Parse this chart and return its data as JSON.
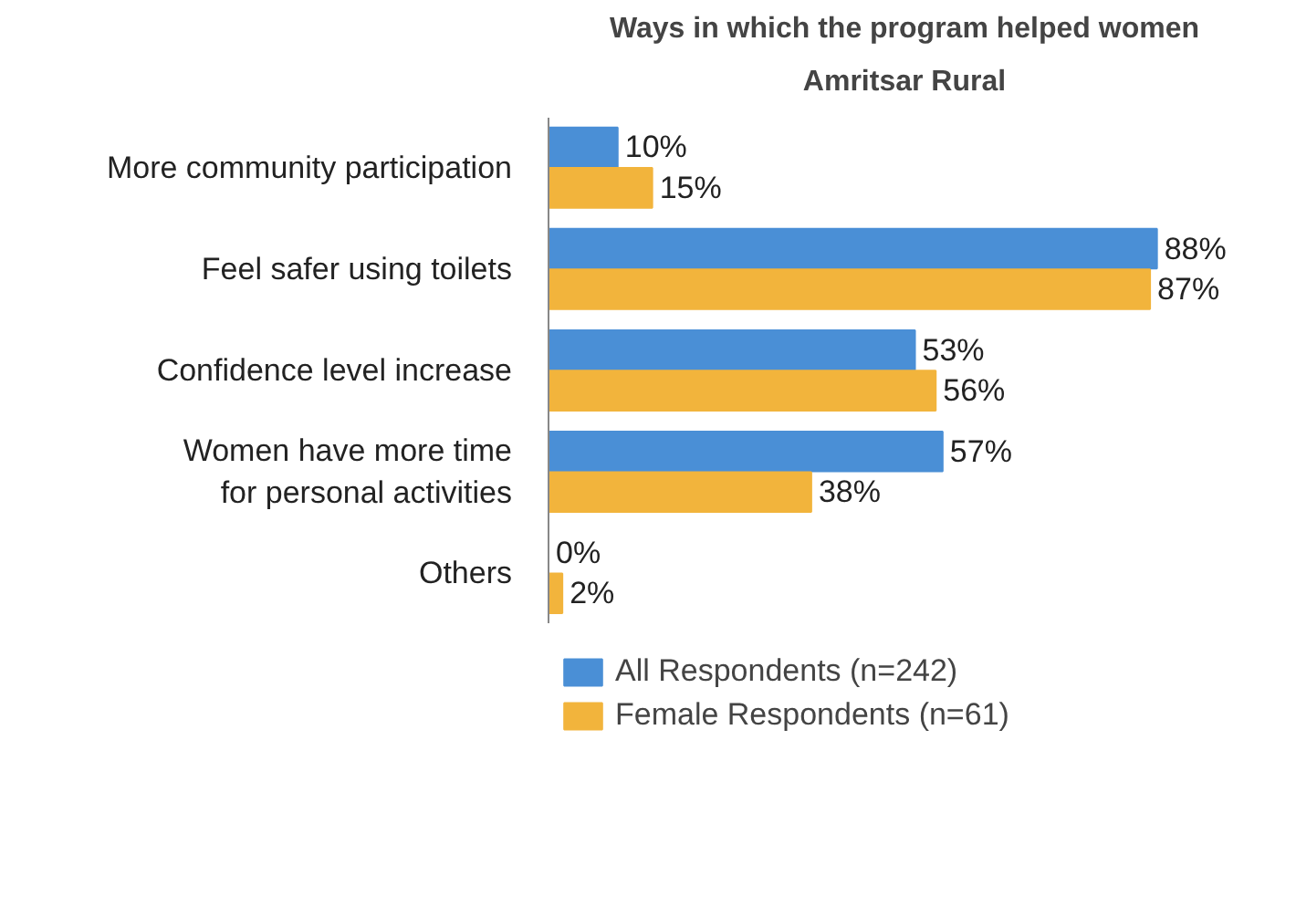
{
  "chart_data": {
    "type": "bar",
    "orientation": "horizontal",
    "title": "Ways in which the program helped women",
    "subtitle": "Amritsar Rural",
    "categories": [
      "More community participation",
      "Feel safer using toilets",
      "Confidence level increase",
      "Women have more time\nfor personal activities",
      "Others"
    ],
    "series": [
      {
        "name": "All Respondents (n=242)",
        "color": "#4a8fd6",
        "values": [
          10,
          88,
          53,
          57,
          0
        ],
        "value_labels": [
          "10%",
          "88%",
          "53%",
          "57%",
          "0%"
        ]
      },
      {
        "name": "Female Respondents (n=61)",
        "color": "#f2b43c",
        "values": [
          15,
          87,
          56,
          38,
          2
        ],
        "value_labels": [
          "15%",
          "87%",
          "56%",
          "38%",
          "2%"
        ]
      }
    ],
    "grid": false,
    "legend": "bottom"
  }
}
